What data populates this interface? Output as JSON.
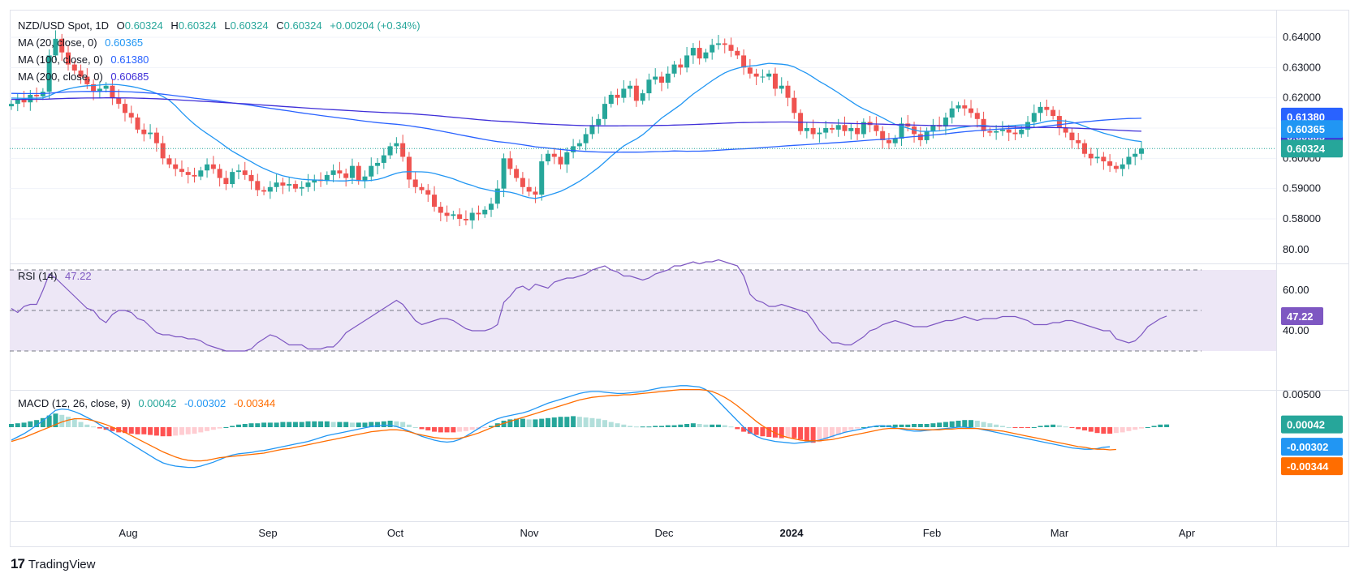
{
  "header": {
    "symbol": "NZD/USD Spot, 1D",
    "open_label": "O",
    "open": "0.60324",
    "high_label": "H",
    "high": "0.60324",
    "low_label": "L",
    "low": "0.60324",
    "close_label": "C",
    "close": "0.60324",
    "change": "+0.00204 (+0.34%)"
  },
  "legend": {
    "ma20": {
      "label": "MA (20, close, 0)",
      "value": "0.60365",
      "color": "#2196f3"
    },
    "ma100": {
      "label": "MA (100, close, 0)",
      "value": "0.61380",
      "color": "#2962ff"
    },
    "ma200": {
      "label": "MA (200, close, 0)",
      "value": "0.60685",
      "color": "#3f2fd8"
    },
    "rsi": {
      "label": "RSI (14)",
      "value": "47.22",
      "color": "#7e57c2"
    },
    "macd": {
      "label": "MACD (12, 26, close, 9)",
      "hist": "0.00042",
      "macd": "-0.00302",
      "signal": "-0.00344"
    }
  },
  "tags": {
    "ma100": "0.61380",
    "ma200": "0.60685",
    "ma20": "0.60365",
    "price": "0.60324",
    "rsi": "47.22",
    "hist": "0.00042",
    "macd": "-0.00302",
    "signal": "-0.00344"
  },
  "colors": {
    "up": "#26a69a",
    "down": "#ef5350",
    "hist_up_strong": "#26a69a",
    "hist_up_weak": "#b2dfdb",
    "hist_down_strong": "#ff5252",
    "hist_down_weak": "#ffcdd2",
    "ma20": "#2196f3",
    "ma100": "#2962ff",
    "ma200": "#3f2fd8",
    "rsi": "#7e57c2",
    "macd_line": "#2196f3",
    "signal_line": "#ff6d00",
    "rsi_band": "#ede7f6"
  },
  "brand": "TradingView",
  "chart_data": [
    {
      "type": "candlestick",
      "panel": "price",
      "y_ticks": [
        "0.64000",
        "0.63000",
        "0.62000",
        "0.61000",
        "0.60000",
        "0.59000",
        "0.58000"
      ],
      "ylim": [
        0.5758,
        0.6415
      ],
      "x_ticks": [
        "Aug",
        "Sep",
        "Oct",
        "Nov",
        "Dec",
        "2024",
        "Feb",
        "Mar",
        "Apr"
      ],
      "current_price": 0.60324,
      "closes": [
        0.618,
        0.6195,
        0.6185,
        0.621,
        0.6205,
        0.622,
        0.634,
        0.6395,
        0.635,
        0.631,
        0.629,
        0.627,
        0.6245,
        0.622,
        0.623,
        0.624,
        0.62,
        0.618,
        0.615,
        0.6135,
        0.6095,
        0.608,
        0.6085,
        0.605,
        0.6,
        0.598,
        0.5965,
        0.5955,
        0.5945,
        0.594,
        0.596,
        0.598,
        0.5965,
        0.5935,
        0.5915,
        0.5955,
        0.596,
        0.5945,
        0.5925,
        0.5895,
        0.589,
        0.5905,
        0.592,
        0.591,
        0.5915,
        0.59,
        0.5905,
        0.592,
        0.593,
        0.5925,
        0.5945,
        0.596,
        0.595,
        0.5935,
        0.5975,
        0.5925,
        0.594,
        0.5975,
        0.5985,
        0.601,
        0.604,
        0.605,
        0.6005,
        0.593,
        0.5905,
        0.5895,
        0.588,
        0.584,
        0.582,
        0.581,
        0.5815,
        0.58,
        0.5795,
        0.582,
        0.5815,
        0.583,
        0.585,
        0.59,
        0.6,
        0.5965,
        0.5935,
        0.5905,
        0.589,
        0.588,
        0.599,
        0.6015,
        0.6005,
        0.598,
        0.602,
        0.604,
        0.605,
        0.608,
        0.611,
        0.613,
        0.618,
        0.621,
        0.62,
        0.623,
        0.624,
        0.619,
        0.6215,
        0.626,
        0.627,
        0.625,
        0.628,
        0.631,
        0.63,
        0.634,
        0.6365,
        0.633,
        0.635,
        0.6375,
        0.638,
        0.6375,
        0.6355,
        0.634,
        0.63,
        0.628,
        0.627,
        0.627,
        0.628,
        0.623,
        0.624,
        0.62,
        0.615,
        0.609,
        0.61,
        0.608,
        0.6085,
        0.61,
        0.6095,
        0.611,
        0.609,
        0.61,
        0.608,
        0.612,
        0.611,
        0.609,
        0.606,
        0.605,
        0.6065,
        0.6115,
        0.6105,
        0.608,
        0.606,
        0.609,
        0.611,
        0.6105,
        0.6135,
        0.6165,
        0.6175,
        0.6165,
        0.615,
        0.613,
        0.609,
        0.6085,
        0.609,
        0.6095,
        0.6085,
        0.608,
        0.6095,
        0.612,
        0.615,
        0.617,
        0.616,
        0.614,
        0.61,
        0.6085,
        0.606,
        0.605,
        0.6015,
        0.6,
        0.6005,
        0.599,
        0.5975,
        0.5965,
        0.598,
        0.6005,
        0.6015,
        0.60324
      ]
    },
    {
      "type": "line",
      "panel": "rsi",
      "name": "RSI (14)",
      "y_ticks": [
        "80.00",
        "60.00",
        "40.00"
      ],
      "ylim": [
        30,
        80
      ],
      "levels": [
        70,
        50,
        30
      ],
      "values": [
        51,
        49,
        52,
        53,
        53,
        60,
        68,
        66,
        63,
        60,
        57,
        54,
        51,
        50,
        46,
        44,
        48,
        50,
        50,
        49,
        46,
        45,
        42,
        39,
        38,
        38,
        37,
        37,
        36,
        36,
        35,
        33,
        32,
        31,
        30,
        30,
        30,
        30,
        31,
        34,
        36,
        38,
        37,
        35,
        33,
        33,
        33,
        31,
        31,
        31,
        32,
        32,
        35,
        39,
        41,
        43,
        45,
        47,
        49,
        51,
        53,
        55,
        53,
        49,
        45,
        43,
        44,
        45,
        46,
        46,
        45,
        43,
        41,
        40,
        40,
        40,
        41,
        43,
        54,
        57,
        61,
        62,
        60,
        63,
        62,
        61,
        64,
        65,
        66,
        66,
        67,
        68,
        70,
        71,
        72,
        70,
        69,
        67,
        67,
        66,
        65,
        66,
        68,
        69,
        70,
        72,
        72,
        73,
        74,
        73,
        74,
        74,
        75,
        74,
        73,
        72,
        67,
        58,
        55,
        54,
        52,
        52,
        53,
        52,
        51,
        50,
        49,
        45,
        40,
        37,
        34,
        34,
        33,
        33,
        35,
        37,
        40,
        41,
        43,
        44,
        45,
        44,
        43,
        42,
        42,
        42,
        43,
        44,
        45,
        45,
        46,
        47,
        46,
        45,
        46,
        46,
        46,
        47,
        47,
        47,
        46,
        45,
        43,
        43,
        43,
        44,
        44,
        45,
        45,
        44,
        43,
        42,
        41,
        40,
        40,
        36,
        35,
        34,
        35,
        38,
        42,
        44,
        46,
        47.22
      ]
    },
    {
      "type": "bar+line",
      "panel": "macd",
      "name": "MACD (12, 26, close, 9)",
      "y_ticks": [
        "0.00500",
        "0.00000"
      ],
      "ylim": [
        -0.0068,
        0.0078
      ],
      "series_names": [
        "Histogram",
        "MACD",
        "Signal"
      ],
      "hist": [
        0.0005,
        0.0006,
        0.0007,
        0.0009,
        0.0011,
        0.0014,
        0.0018,
        0.0021,
        0.0019,
        0.0016,
        0.0012,
        0.0008,
        0.0004,
        0.0001,
        -0.0002,
        -0.0004,
        -0.0006,
        -0.0008,
        -0.0009,
        -0.001,
        -0.0011,
        -0.0011,
        -0.0012,
        -0.0013,
        -0.0014,
        -0.0014,
        -0.0013,
        -0.0012,
        -0.0011,
        -0.001,
        -0.0008,
        -0.0006,
        -0.0004,
        -0.0002,
        0.0,
        0.0002,
        0.0004,
        0.0005,
        0.0006,
        0.0006,
        0.0007,
        0.0007,
        0.0007,
        0.0008,
        0.0008,
        0.0008,
        0.0008,
        0.0009,
        0.0009,
        0.0009,
        0.0009,
        0.0008,
        0.0008,
        0.0008,
        0.0007,
        0.0007,
        0.0007,
        0.0008,
        0.0008,
        0.0009,
        0.001,
        0.0009,
        0.0008,
        0.0004,
        0.0,
        -0.0003,
        -0.0005,
        -0.0007,
        -0.0008,
        -0.0008,
        -0.0008,
        -0.0007,
        -0.0006,
        -0.0004,
        -0.0003,
        -0.0001,
        0.0002,
        0.0006,
        0.001,
        0.0012,
        0.0013,
        0.0013,
        0.0012,
        0.0012,
        0.0013,
        0.0014,
        0.0015,
        0.0016,
        0.0016,
        0.0017,
        0.0016,
        0.0015,
        0.0014,
        0.0013,
        0.0011,
        0.0008,
        0.0006,
        0.0004,
        0.0002,
        0.0001,
        0.0001,
        0.0001,
        0.0002,
        0.0002,
        0.0003,
        0.0003,
        0.0004,
        0.0005,
        0.0006,
        0.0005,
        0.0004,
        0.0004,
        0.0004,
        0.0003,
        0.0001,
        -0.0003,
        -0.0007,
        -0.001,
        -0.0012,
        -0.0014,
        -0.0015,
        -0.0016,
        -0.0017,
        -0.0016,
        -0.0017,
        -0.0019,
        -0.0022,
        -0.0024,
        -0.0023,
        -0.002,
        -0.0016,
        -0.0012,
        -0.0008,
        -0.0004,
        -0.0002,
        0.0,
        0.0001,
        0.0002,
        0.0003,
        0.0003,
        0.0004,
        0.0004,
        0.0004,
        0.0005,
        0.0005,
        0.0005,
        0.0006,
        0.0007,
        0.0008,
        0.0009,
        0.001,
        0.0011,
        0.0011,
        0.001,
        0.0008,
        0.0006,
        0.0004,
        0.0002,
        0.0,
        -0.0001,
        -0.0001,
        -0.0001,
        0.0,
        0.0002,
        0.0003,
        0.0004,
        0.0003,
        0.0001,
        -0.0001,
        -0.0003,
        -0.0005,
        -0.0007,
        -0.0009,
        -0.001,
        -0.001,
        -0.0009,
        -0.0008,
        -0.0006,
        -0.0004,
        -0.0002,
        0.0,
        0.0002,
        0.0004,
        0.00042
      ],
      "macd": [
        -0.002,
        -0.0015,
        -0.001,
        -0.0004,
        0.0003,
        0.001,
        0.0018,
        0.0026,
        0.0028,
        0.0027,
        0.0024,
        0.002,
        0.0015,
        0.001,
        0.0004,
        -0.0002,
        -0.0008,
        -0.0014,
        -0.002,
        -0.0026,
        -0.0032,
        -0.0038,
        -0.0044,
        -0.005,
        -0.0055,
        -0.0058,
        -0.006,
        -0.0061,
        -0.0062,
        -0.0062,
        -0.006,
        -0.0057,
        -0.0054,
        -0.005,
        -0.0046,
        -0.0043,
        -0.0041,
        -0.004,
        -0.0039,
        -0.0037,
        -0.0036,
        -0.0034,
        -0.0032,
        -0.003,
        -0.0028,
        -0.0026,
        -0.0024,
        -0.0022,
        -0.0019,
        -0.0016,
        -0.0013,
        -0.0011,
        -0.0009,
        -0.0007,
        -0.0005,
        -0.0003,
        -0.0001,
        0.0001,
        0.0002,
        0.0003,
        0.0003,
        0.0001,
        -0.0002,
        -0.0006,
        -0.001,
        -0.0014,
        -0.0017,
        -0.002,
        -0.0022,
        -0.0023,
        -0.0022,
        -0.0019,
        -0.0014,
        -0.0008,
        -0.0002,
        0.0004,
        0.0009,
        0.0013,
        0.0016,
        0.0018,
        0.002,
        0.0022,
        0.0025,
        0.0029,
        0.0033,
        0.0037,
        0.004,
        0.0043,
        0.0046,
        0.0049,
        0.0052,
        0.0054,
        0.0055,
        0.0055,
        0.0054,
        0.0053,
        0.0052,
        0.0052,
        0.0053,
        0.0054,
        0.0055,
        0.0057,
        0.0059,
        0.0061,
        0.0062,
        0.0063,
        0.0064,
        0.0064,
        0.0063,
        0.0062,
        0.0058,
        0.005,
        0.004,
        0.003,
        0.002,
        0.001,
        0.0,
        -0.0008,
        -0.0014,
        -0.0018,
        -0.002,
        -0.0022,
        -0.0023,
        -0.0024,
        -0.0025,
        -0.0024,
        -0.0023,
        -0.0022,
        -0.002,
        -0.0017,
        -0.0014,
        -0.0011,
        -0.0008,
        -0.0006,
        -0.0004,
        -0.0002,
        0.0,
        0.0002,
        0.0002,
        0.0001,
        -0.0001,
        -0.0003,
        -0.0005,
        -0.0006,
        -0.0006,
        -0.0005,
        -0.0004,
        -0.0003,
        -0.0002,
        -0.0001,
        0.0,
        0.0,
        -0.0001,
        -0.0002,
        -0.0004,
        -0.0006,
        -0.0008,
        -0.001,
        -0.0012,
        -0.0014,
        -0.0016,
        -0.0018,
        -0.002,
        -0.0022,
        -0.0024,
        -0.0026,
        -0.0028,
        -0.003,
        -0.0032,
        -0.0033,
        -0.0034,
        -0.0034,
        -0.0033,
        -0.0031,
        -0.00302
      ],
      "signal": [
        -0.0022,
        -0.0019,
        -0.0016,
        -0.0012,
        -0.0008,
        -0.0004,
        0.0,
        0.0004,
        0.0008,
        0.0011,
        0.0013,
        0.0013,
        0.0012,
        0.001,
        0.0007,
        0.0004,
        0.0,
        -0.0004,
        -0.0008,
        -0.0013,
        -0.0018,
        -0.0023,
        -0.0028,
        -0.0033,
        -0.0038,
        -0.0042,
        -0.0046,
        -0.0049,
        -0.0051,
        -0.0052,
        -0.0052,
        -0.0051,
        -0.0049,
        -0.0047,
        -0.0046,
        -0.0045,
        -0.0044,
        -0.0043,
        -0.0042,
        -0.0041,
        -0.004,
        -0.0038,
        -0.0036,
        -0.0034,
        -0.0033,
        -0.0031,
        -0.0029,
        -0.0027,
        -0.0025,
        -0.0023,
        -0.0021,
        -0.0019,
        -0.0017,
        -0.0015,
        -0.0013,
        -0.0011,
        -0.0009,
        -0.0007,
        -0.0006,
        -0.0005,
        -0.0004,
        -0.0004,
        -0.0005,
        -0.0007,
        -0.001,
        -0.0012,
        -0.0014,
        -0.0016,
        -0.0017,
        -0.0018,
        -0.0018,
        -0.0017,
        -0.0015,
        -0.0012,
        -0.0009,
        -0.0005,
        -0.0001,
        0.0003,
        0.0006,
        0.0009,
        0.0012,
        0.0015,
        0.0018,
        0.0021,
        0.0024,
        0.0027,
        0.003,
        0.0033,
        0.0036,
        0.0039,
        0.0042,
        0.0044,
        0.0046,
        0.0047,
        0.0048,
        0.0049,
        0.0049,
        0.005,
        0.005,
        0.0051,
        0.0052,
        0.0053,
        0.0054,
        0.0055,
        0.0056,
        0.0057,
        0.0058,
        0.0058,
        0.0058,
        0.0058,
        0.0057,
        0.0055,
        0.0051,
        0.0046,
        0.004,
        0.0033,
        0.0025,
        0.0017,
        0.0009,
        0.0002,
        -0.0004,
        -0.0009,
        -0.0013,
        -0.0016,
        -0.0018,
        -0.002,
        -0.0021,
        -0.0021,
        -0.0021,
        -0.002,
        -0.0019,
        -0.0017,
        -0.0015,
        -0.0013,
        -0.0011,
        -0.0009,
        -0.0007,
        -0.0005,
        -0.0003,
        -0.0002,
        -0.0002,
        -0.0002,
        -0.0003,
        -0.0003,
        -0.0004,
        -0.0004,
        -0.0004,
        -0.0004,
        -0.0003,
        -0.0003,
        -0.0002,
        -0.0002,
        -0.0002,
        -0.0002,
        -0.0003,
        -0.0004,
        -0.0005,
        -0.0006,
        -0.0008,
        -0.001,
        -0.0012,
        -0.0014,
        -0.0016,
        -0.0018,
        -0.002,
        -0.0022,
        -0.0024,
        -0.0026,
        -0.0028,
        -0.003,
        -0.0031,
        -0.0033,
        -0.0034,
        -0.0034,
        -0.0035,
        -0.00344
      ]
    }
  ]
}
